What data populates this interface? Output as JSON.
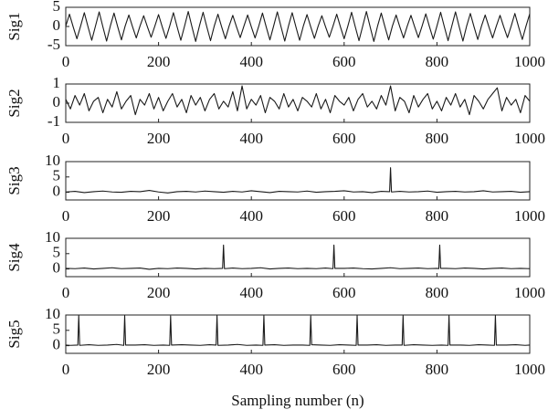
{
  "xlabel": "Sampling number (n)",
  "chart_data": [
    {
      "type": "line",
      "ylabel": "Sig1",
      "color": "#1a1a1a",
      "xlim": [
        0,
        1000
      ],
      "xticks": [
        0,
        200,
        400,
        600,
        800,
        1000
      ],
      "ylim": [
        -5,
        5
      ],
      "yticks": [
        -5,
        0,
        5
      ],
      "x": [
        0,
        8,
        16,
        24,
        32,
        40,
        48,
        56,
        64,
        72,
        80,
        88,
        96,
        104,
        112,
        120,
        128,
        136,
        144,
        152,
        160,
        168,
        176,
        184,
        192,
        200,
        208,
        216,
        224,
        232,
        240,
        248,
        256,
        264,
        272,
        280,
        288,
        296,
        304,
        312,
        320,
        328,
        336,
        344,
        352,
        360,
        368,
        376,
        384,
        392,
        400,
        408,
        416,
        424,
        432,
        440,
        448,
        456,
        464,
        472,
        480,
        488,
        496,
        504,
        512,
        520,
        528,
        536,
        544,
        552,
        560,
        568,
        576,
        584,
        592,
        600,
        608,
        616,
        624,
        632,
        640,
        648,
        656,
        664,
        672,
        680,
        688,
        696,
        704,
        712,
        720,
        728,
        736,
        744,
        752,
        760,
        768,
        776,
        784,
        792,
        800,
        808,
        816,
        824,
        832,
        840,
        848,
        856,
        864,
        872,
        880,
        888,
        896,
        904,
        912,
        920,
        928,
        936,
        944,
        952,
        960,
        968,
        976,
        984,
        992,
        1000
      ],
      "values": [
        0.1,
        3.2,
        -0.1,
        -3.2,
        0.1,
        3.6,
        -0.1,
        -3.6,
        0.1,
        3.8,
        -0.1,
        -3.8,
        0.1,
        3.5,
        -0.1,
        -3.5,
        0.1,
        3.0,
        -0.1,
        -3.0,
        0.1,
        2.8,
        -0.1,
        -2.8,
        0.1,
        3.1,
        -0.1,
        -3.1,
        0.1,
        3.6,
        -0.1,
        -3.6,
        0.1,
        3.9,
        -0.1,
        -3.9,
        0.1,
        3.7,
        -0.1,
        -3.7,
        0.1,
        3.2,
        -0.1,
        -3.2,
        0.1,
        2.9,
        -0.1,
        -2.9,
        0.1,
        3.0,
        -0.1,
        -3.0,
        0.1,
        3.5,
        -0.1,
        -3.5,
        0.1,
        3.8,
        -0.1,
        -3.8,
        0.1,
        3.6,
        -0.1,
        -3.6,
        0.1,
        3.1,
        -0.1,
        -3.1,
        0.1,
        2.8,
        -0.1,
        -2.8,
        0.1,
        3.2,
        -0.1,
        -3.2,
        0.1,
        3.7,
        -0.1,
        -3.7,
        0.1,
        3.9,
        -0.1,
        -3.9,
        0.1,
        3.5,
        -0.1,
        -3.5,
        0.1,
        3.0,
        -0.1,
        -3.0,
        0.1,
        2.9,
        -0.1,
        -2.9,
        0.1,
        3.3,
        -0.1,
        -3.3,
        0.1,
        3.7,
        -0.1,
        -3.7,
        0.1,
        3.8,
        -0.1,
        -3.8,
        0.1,
        3.4,
        -0.1,
        -3.4,
        0.1,
        3.0,
        -0.1,
        -3.0,
        0.1,
        2.9,
        -0.1,
        -2.9,
        0.1,
        3.4,
        -0.1,
        -3.4,
        0.1,
        3.3
      ]
    },
    {
      "type": "line",
      "ylabel": "Sig2",
      "color": "#1a1a1a",
      "xlim": [
        0,
        1000
      ],
      "xticks": [
        0,
        200,
        400,
        600,
        800,
        1000
      ],
      "ylim": [
        -1,
        1
      ],
      "yticks": [
        -1,
        0,
        1
      ],
      "x": [
        0,
        10,
        20,
        30,
        40,
        50,
        60,
        70,
        80,
        90,
        100,
        110,
        120,
        130,
        140,
        150,
        160,
        170,
        180,
        190,
        200,
        210,
        220,
        230,
        240,
        250,
        260,
        270,
        280,
        290,
        300,
        310,
        320,
        330,
        340,
        350,
        360,
        370,
        380,
        390,
        400,
        410,
        420,
        430,
        440,
        450,
        460,
        470,
        480,
        490,
        500,
        510,
        520,
        530,
        540,
        550,
        560,
        570,
        580,
        590,
        600,
        610,
        620,
        630,
        640,
        650,
        660,
        670,
        680,
        690,
        700,
        710,
        720,
        730,
        740,
        750,
        760,
        770,
        780,
        790,
        800,
        810,
        820,
        830,
        840,
        850,
        860,
        870,
        880,
        890,
        900,
        910,
        920,
        930,
        940,
        950,
        960,
        970,
        980,
        990,
        1000
      ],
      "values": [
        0.2,
        -0.3,
        0.4,
        -0.1,
        0.5,
        -0.4,
        0.1,
        0.3,
        -0.5,
        0.2,
        -0.2,
        0.6,
        -0.3,
        0.1,
        0.4,
        -0.6,
        0.2,
        -0.1,
        0.5,
        -0.3,
        0.3,
        -0.4,
        0.1,
        0.5,
        -0.2,
        0.2,
        -0.5,
        0.4,
        -0.1,
        0.3,
        -0.4,
        0.2,
        0.5,
        -0.3,
        0.1,
        -0.2,
        0.6,
        -0.4,
        0.9,
        -0.3,
        0.2,
        -0.1,
        0.4,
        -0.5,
        0.3,
        0.1,
        -0.3,
        0.5,
        -0.2,
        0.2,
        -0.4,
        0.3,
        0.1,
        -0.2,
        0.5,
        -0.3,
        0.2,
        -0.5,
        0.4,
        0.1,
        -0.1,
        0.3,
        -0.4,
        0.2,
        0.5,
        -0.2,
        0.1,
        -0.3,
        0.4,
        -0.1,
        0.9,
        -0.4,
        0.3,
        0.1,
        -0.5,
        0.4,
        -0.2,
        0.2,
        0.5,
        -0.3,
        0.1,
        -0.4,
        0.3,
        -0.1,
        0.5,
        -0.2,
        0.2,
        -0.6,
        0.4,
        0.1,
        -0.3,
        0.2,
        0.5,
        0.8,
        -0.4,
        0.3,
        -0.1,
        0.2,
        -0.5,
        0.4,
        0.1
      ]
    },
    {
      "type": "line",
      "ylabel": "Sig3",
      "color": "#1a1a1a",
      "xlim": [
        0,
        1000
      ],
      "xticks": [
        0,
        200,
        400,
        600,
        800,
        1000
      ],
      "ylim": [
        -2.5,
        10
      ],
      "yticks": [
        0,
        5,
        10
      ],
      "x": [
        0,
        20,
        40,
        60,
        80,
        100,
        120,
        140,
        160,
        180,
        200,
        220,
        240,
        260,
        280,
        300,
        320,
        340,
        360,
        380,
        400,
        420,
        440,
        460,
        480,
        500,
        520,
        540,
        560,
        580,
        600,
        620,
        640,
        660,
        680,
        698,
        700,
        702,
        720,
        740,
        760,
        780,
        800,
        820,
        840,
        860,
        880,
        900,
        920,
        940,
        960,
        980,
        1000
      ],
      "values": [
        0.1,
        0.3,
        -0.1,
        0.2,
        0.4,
        0.1,
        0.0,
        0.3,
        0.2,
        0.6,
        0.1,
        -0.2,
        0.2,
        0.3,
        0.1,
        0.4,
        0.2,
        0.0,
        0.3,
        0.1,
        0.5,
        0.2,
        -0.1,
        0.3,
        0.2,
        0.1,
        0.4,
        0.0,
        0.2,
        0.3,
        0.5,
        0.1,
        0.2,
        -0.1,
        0.3,
        0.2,
        8.0,
        0.1,
        0.3,
        0.1,
        0.2,
        0.4,
        0.0,
        0.2,
        0.3,
        0.1,
        0.2,
        0.5,
        0.1,
        0.2,
        0.3,
        0.0,
        0.2
      ]
    },
    {
      "type": "line",
      "ylabel": "Sig4",
      "color": "#1a1a1a",
      "xlim": [
        0,
        1000
      ],
      "xticks": [
        0,
        200,
        400,
        600,
        800,
        1000
      ],
      "ylim": [
        -2.5,
        10
      ],
      "yticks": [
        0,
        5,
        10
      ],
      "x": [
        0,
        20,
        40,
        60,
        80,
        100,
        120,
        140,
        160,
        180,
        200,
        220,
        240,
        260,
        280,
        300,
        320,
        338,
        340,
        342,
        360,
        380,
        400,
        420,
        440,
        460,
        480,
        500,
        520,
        540,
        560,
        576,
        578,
        580,
        600,
        620,
        640,
        660,
        680,
        700,
        720,
        740,
        760,
        780,
        800,
        804,
        806,
        808,
        820,
        840,
        860,
        880,
        900,
        920,
        940,
        960,
        980,
        1000
      ],
      "values": [
        0.2,
        0.1,
        0.3,
        0.0,
        0.2,
        0.4,
        0.1,
        0.2,
        0.3,
        -0.1,
        0.2,
        0.1,
        0.3,
        0.2,
        0.0,
        0.2,
        0.1,
        0.2,
        7.8,
        0.1,
        0.3,
        0.1,
        0.2,
        0.4,
        0.0,
        0.2,
        0.3,
        0.1,
        0.2,
        0.1,
        0.3,
        0.1,
        7.8,
        0.2,
        0.2,
        0.3,
        0.1,
        0.0,
        0.2,
        0.4,
        0.1,
        0.2,
        0.3,
        0.1,
        0.2,
        0.1,
        7.8,
        0.2,
        0.2,
        0.1,
        0.3,
        0.2,
        0.0,
        0.2,
        0.3,
        0.1,
        0.2,
        0.1
      ]
    },
    {
      "type": "line",
      "ylabel": "Sig5",
      "color": "#1a1a1a",
      "xlim": [
        0,
        1000
      ],
      "xticks": [
        0,
        200,
        400,
        600,
        800,
        1000
      ],
      "ylim": [
        -2.5,
        10
      ],
      "yticks": [
        0,
        5,
        10
      ],
      "x": [
        0,
        10,
        26,
        28,
        30,
        50,
        70,
        90,
        110,
        125,
        127,
        129,
        150,
        170,
        190,
        210,
        224,
        226,
        228,
        250,
        270,
        290,
        310,
        324,
        326,
        328,
        350,
        370,
        390,
        410,
        425,
        427,
        429,
        450,
        470,
        490,
        510,
        526,
        528,
        530,
        550,
        570,
        590,
        610,
        626,
        628,
        630,
        650,
        670,
        690,
        710,
        725,
        727,
        729,
        750,
        770,
        790,
        810,
        824,
        826,
        828,
        850,
        870,
        890,
        910,
        924,
        926,
        928,
        950,
        970,
        990,
        1000
      ],
      "values": [
        0.2,
        0.1,
        0.2,
        9.8,
        0.1,
        0.3,
        0.1,
        0.2,
        0.4,
        0.1,
        9.8,
        0.2,
        0.2,
        0.3,
        0.1,
        0.2,
        0.1,
        9.7,
        0.2,
        0.3,
        0.2,
        0.1,
        0.3,
        0.2,
        9.8,
        0.1,
        0.2,
        0.4,
        0.1,
        0.2,
        0.1,
        9.8,
        0.2,
        0.3,
        0.1,
        0.2,
        0.2,
        0.1,
        9.7,
        0.3,
        0.2,
        0.1,
        0.3,
        0.2,
        0.1,
        9.8,
        0.2,
        0.2,
        0.3,
        0.1,
        0.2,
        0.2,
        9.8,
        0.1,
        0.3,
        0.2,
        0.1,
        0.2,
        0.1,
        9.8,
        0.2,
        0.2,
        0.1,
        0.3,
        0.2,
        0.1,
        9.8,
        0.2,
        0.2,
        0.3,
        0.1,
        0.2
      ]
    }
  ]
}
